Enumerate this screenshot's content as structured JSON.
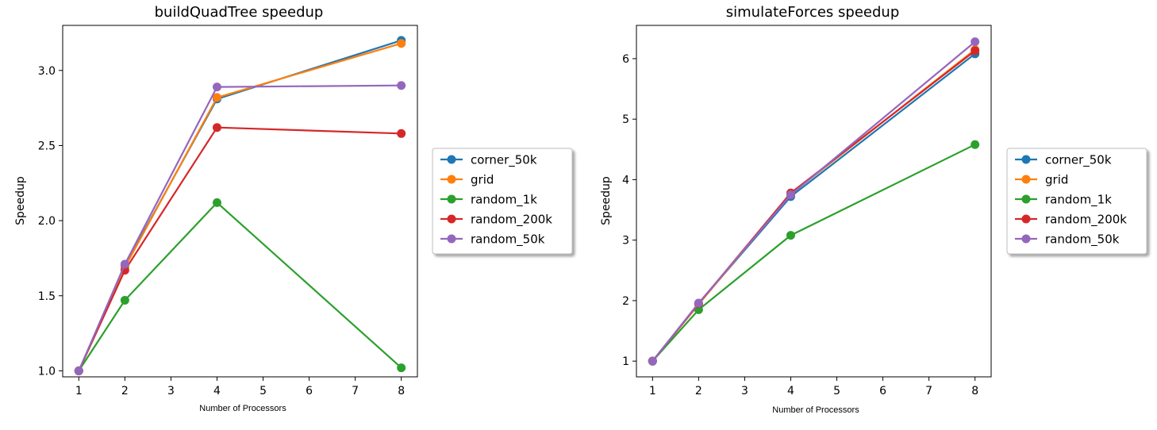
{
  "colors": {
    "corner_50k": "#1f77b4",
    "grid": "#ff7f0e",
    "random_1k": "#2ca02c",
    "random_200k": "#d62728",
    "random_50k": "#9467bd"
  },
  "chart_data": [
    {
      "type": "line",
      "title": "buildQuadTree speedup",
      "xlabel": "Number of Processors",
      "ylabel": "Speedup",
      "x": [
        1,
        2,
        4,
        8
      ],
      "xlim": [
        0.65,
        8.35
      ],
      "ylim": [
        0.96,
        3.3
      ],
      "xticks": [
        1,
        2,
        3,
        4,
        5,
        6,
        7,
        8
      ],
      "yticks": [
        1.0,
        1.5,
        2.0,
        2.5,
        3.0
      ],
      "ytick_labels": [
        "1.0",
        "1.5",
        "2.0",
        "2.5",
        "3.0"
      ],
      "legend_position": "outside-right",
      "series": [
        {
          "name": "corner_50k",
          "values": [
            1.0,
            1.7,
            2.81,
            3.2
          ]
        },
        {
          "name": "grid",
          "values": [
            1.0,
            1.69,
            2.82,
            3.18
          ]
        },
        {
          "name": "random_1k",
          "values": [
            1.0,
            1.47,
            2.12,
            1.02
          ]
        },
        {
          "name": "random_200k",
          "values": [
            1.0,
            1.67,
            2.62,
            2.58
          ]
        },
        {
          "name": "random_50k",
          "values": [
            1.0,
            1.71,
            2.89,
            2.9
          ]
        }
      ]
    },
    {
      "type": "line",
      "title": "simulateForces speedup",
      "xlabel": "Number of Processors",
      "ylabel": "Speedup",
      "x": [
        1,
        2,
        4,
        8
      ],
      "xlim": [
        0.65,
        8.35
      ],
      "ylim": [
        0.74,
        6.55
      ],
      "xticks": [
        1,
        2,
        3,
        4,
        5,
        6,
        7,
        8
      ],
      "yticks": [
        1,
        2,
        3,
        4,
        5,
        6
      ],
      "ytick_labels": [
        "1",
        "2",
        "3",
        "4",
        "5",
        "6"
      ],
      "legend_position": "outside-right",
      "series": [
        {
          "name": "corner_50k",
          "values": [
            1.0,
            1.95,
            3.72,
            6.08
          ]
        },
        {
          "name": "grid",
          "values": [
            1.0,
            1.94,
            3.76,
            6.15
          ]
        },
        {
          "name": "random_1k",
          "values": [
            1.0,
            1.85,
            3.08,
            4.58
          ]
        },
        {
          "name": "random_200k",
          "values": [
            1.0,
            1.95,
            3.78,
            6.13
          ]
        },
        {
          "name": "random_50k",
          "values": [
            1.0,
            1.96,
            3.75,
            6.28
          ]
        }
      ]
    }
  ]
}
